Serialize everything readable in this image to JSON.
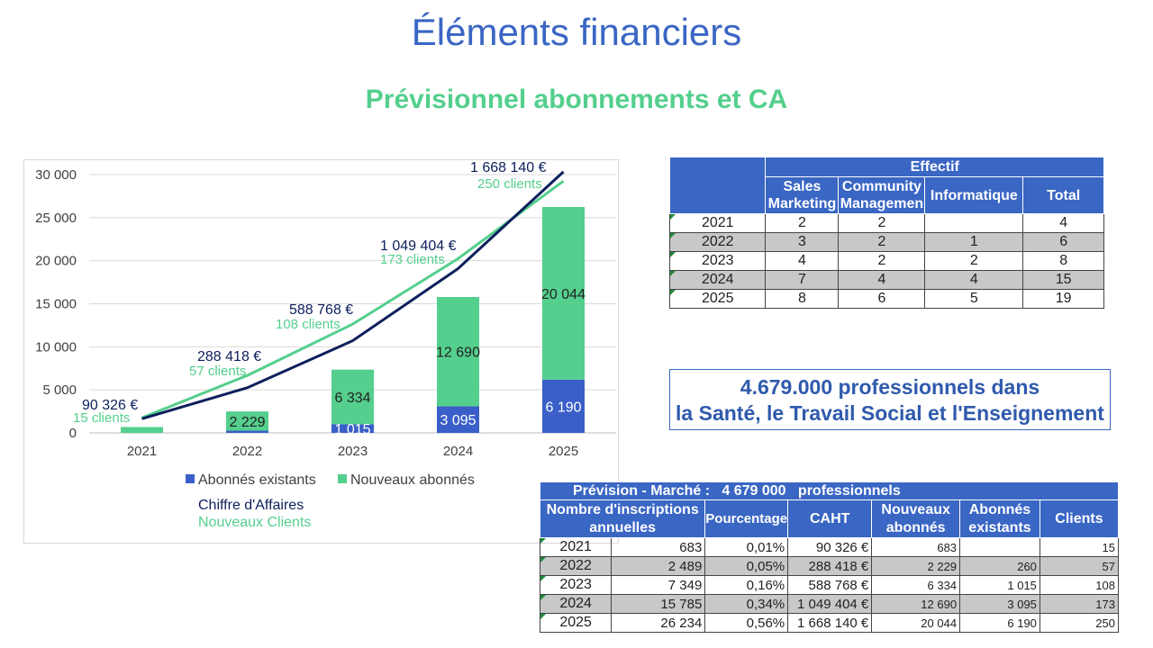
{
  "page": {
    "title": "Éléments financiers",
    "subtitle": "Prévisionnel abonnements et CA"
  },
  "colors": {
    "existing": "#3a5fc8",
    "new": "#54cf8d",
    "ca_line": "#0d1f5c",
    "clients_line": "#54cf8d",
    "header": "#3a66c4"
  },
  "chart_data": {
    "type": "bar",
    "stacked": true,
    "categories": [
      "2021",
      "2022",
      "2023",
      "2024",
      "2025"
    ],
    "ylim": [
      0,
      30000
    ],
    "yticks": [
      "0",
      "5 000",
      "10 000",
      "15 000",
      "20 000",
      "25 000",
      "30 000"
    ],
    "ytick_values": [
      0,
      5000,
      10000,
      15000,
      20000,
      25000,
      30000
    ],
    "grid": true,
    "series": [
      {
        "name": "Abonnés existants",
        "values": [
          0,
          260,
          1015,
          3095,
          6190
        ],
        "labels": [
          "",
          "",
          "1 015",
          "3 095",
          "6 190"
        ]
      },
      {
        "name": "Nouveaux abonnés",
        "values": [
          683,
          2229,
          6334,
          12690,
          20044
        ],
        "labels": [
          "",
          "2 229",
          "6 334",
          "12 690",
          "20 044"
        ]
      }
    ],
    "lines": [
      {
        "name": "Chiffre d'Affaires",
        "values": [
          90326,
          288418,
          588768,
          1049404,
          1668140
        ],
        "labels": [
          "90 326 €",
          "288 418 €",
          "588 768 €",
          "1 049 404 €",
          "1 668 140 €"
        ]
      },
      {
        "name": "Nouveaux Clients",
        "values": [
          15,
          57,
          108,
          173,
          250
        ],
        "labels": [
          "15 clients",
          "57 clients",
          "108 clients",
          "173 clients",
          "250 clients"
        ]
      }
    ],
    "legend": "bottom"
  },
  "effectif": {
    "group_header": "Effectif",
    "columns": [
      "Sales Marketing",
      "Community Managemen",
      "Informatique",
      "Total"
    ],
    "rows": [
      {
        "year": "2021",
        "sales": "2",
        "community": "2",
        "info": "",
        "total": "4"
      },
      {
        "year": "2022",
        "sales": "3",
        "community": "2",
        "info": "1",
        "total": "6"
      },
      {
        "year": "2023",
        "sales": "4",
        "community": "2",
        "info": "2",
        "total": "8"
      },
      {
        "year": "2024",
        "sales": "7",
        "community": "4",
        "info": "4",
        "total": "15"
      },
      {
        "year": "2025",
        "sales": "8",
        "community": "6",
        "info": "5",
        "total": "19"
      }
    ]
  },
  "highlight": {
    "line1": "4.679.000 professionnels dans",
    "line2": "la Santé, le Travail Social et l'Enseignement"
  },
  "prevision": {
    "banner_label": "Prévision - Marché :",
    "banner_value": "4 679 000",
    "banner_unit": "professionnels",
    "columns": [
      "Nombre d'inscriptions annuelles",
      "Pourcentage",
      "CAHT",
      "Nouveaux abonnés",
      "Abonnés existants",
      "Clients"
    ],
    "rows": [
      {
        "year": "2021",
        "inscriptions": "683",
        "pct": "0,01%",
        "caht": "90 326 €",
        "nouveaux": "683",
        "existants": "",
        "clients": "15"
      },
      {
        "year": "2022",
        "inscriptions": "2 489",
        "pct": "0,05%",
        "caht": "288 418 €",
        "nouveaux": "2 229",
        "existants": "260",
        "clients": "57"
      },
      {
        "year": "2023",
        "inscriptions": "7 349",
        "pct": "0,16%",
        "caht": "588 768 €",
        "nouveaux": "6 334",
        "existants": "1 015",
        "clients": "108"
      },
      {
        "year": "2024",
        "inscriptions": "15 785",
        "pct": "0,34%",
        "caht": "1 049 404 €",
        "nouveaux": "12 690",
        "existants": "3 095",
        "clients": "173"
      },
      {
        "year": "2025",
        "inscriptions": "26 234",
        "pct": "0,56%",
        "caht": "1 668 140 €",
        "nouveaux": "20 044",
        "existants": "6 190",
        "clients": "250"
      }
    ]
  }
}
